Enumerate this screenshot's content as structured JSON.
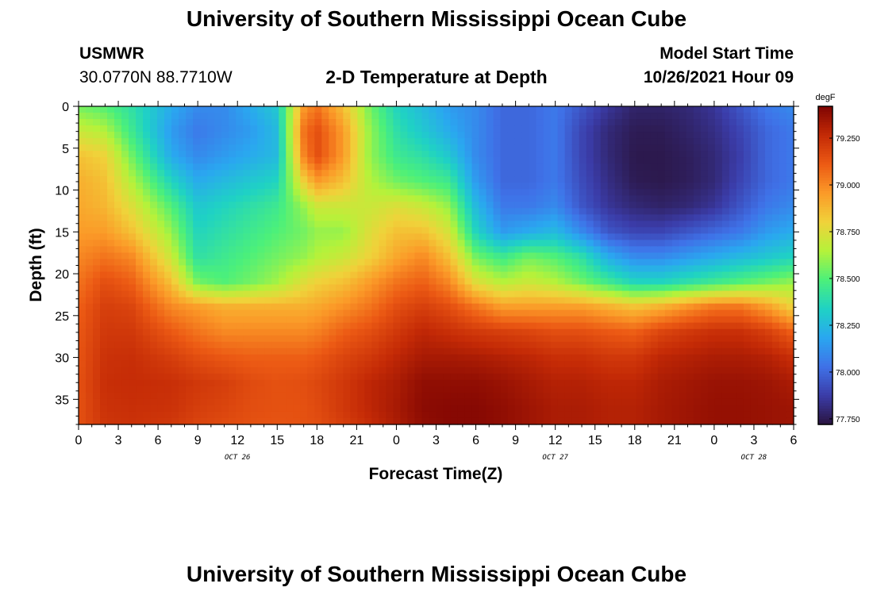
{
  "page": {
    "title": "University of Southern Mississippi Ocean Cube",
    "footer_title": "University of Southern Mississippi Ocean Cube",
    "station": "USMWR",
    "coords": "30.0770N  88.7710W",
    "model_start_label": "Model Start Time",
    "model_start_value": "10/26/2021 Hour 09"
  },
  "chart_data": {
    "type": "heatmap",
    "title": "2-D Temperature at Depth",
    "xlabel": "Forecast Time(Z)",
    "ylabel": "Depth (ft)",
    "x_tick_labels": [
      "0",
      "3",
      "6",
      "9",
      "12",
      "15",
      "18",
      "21",
      "0",
      "3",
      "6",
      "9",
      "12",
      "15",
      "18",
      "21",
      "0",
      "3",
      "6"
    ],
    "date_labels": [
      {
        "text": "OCT 26",
        "x_hours": 12
      },
      {
        "text": "OCT 27",
        "x_hours": 36
      },
      {
        "text": "OCT 28",
        "x_hours": 51
      }
    ],
    "xlim_hours": [
      0,
      54
    ],
    "y_ticks": [
      0,
      5,
      10,
      15,
      20,
      25,
      30,
      35
    ],
    "ylim_ft": [
      0,
      38
    ],
    "colorbar": {
      "unit": "degF",
      "ticks": [
        "79.250",
        "79.000",
        "78.750",
        "78.500",
        "78.250",
        "78.000",
        "77.750"
      ],
      "tick_values": [
        79.25,
        79.0,
        78.75,
        78.5,
        78.25,
        78.0,
        77.75
      ],
      "range": [
        77.72,
        79.42
      ],
      "colors": [
        "#2a1440",
        "#3b3ca8",
        "#3f72e8",
        "#2aa7f0",
        "#1fd2c4",
        "#4cf07a",
        "#b5f23a",
        "#f0d23a",
        "#fb9a28",
        "#ec5a14",
        "#c42a06",
        "#7e0402"
      ]
    },
    "profiles": {
      "depths_ft": [
        0,
        3,
        6,
        9,
        12,
        15,
        18,
        21,
        24,
        27,
        30,
        33,
        36,
        38
      ],
      "columns": [
        {
          "hour": 0,
          "temps": [
            78.55,
            78.7,
            78.85,
            78.9,
            78.92,
            78.95,
            79.0,
            79.05,
            79.1,
            79.12,
            79.13,
            79.14,
            79.14,
            79.14
          ]
        },
        {
          "hour": 2,
          "temps": [
            78.5,
            78.65,
            78.8,
            78.85,
            78.88,
            78.95,
            79.05,
            79.15,
            79.2,
            79.22,
            79.24,
            79.25,
            79.24,
            79.23
          ]
        },
        {
          "hour": 4,
          "temps": [
            78.4,
            78.45,
            78.55,
            78.65,
            78.75,
            78.85,
            79.0,
            79.1,
            79.18,
            79.22,
            79.25,
            79.26,
            79.25,
            79.24
          ]
        },
        {
          "hour": 7,
          "temps": [
            78.2,
            78.15,
            78.2,
            78.35,
            78.5,
            78.6,
            78.7,
            78.85,
            79.0,
            79.12,
            79.2,
            79.25,
            79.24,
            79.22
          ]
        },
        {
          "hour": 9,
          "temps": [
            78.1,
            78.05,
            78.1,
            78.2,
            78.3,
            78.35,
            78.4,
            78.55,
            78.95,
            79.05,
            79.15,
            79.22,
            79.2,
            79.18
          ]
        },
        {
          "hour": 11,
          "temps": [
            78.1,
            78.1,
            78.15,
            78.25,
            78.35,
            78.4,
            78.45,
            78.5,
            78.9,
            79.0,
            79.12,
            79.2,
            79.18,
            79.16
          ]
        },
        {
          "hour": 13,
          "temps": [
            78.2,
            78.15,
            78.2,
            78.3,
            78.4,
            78.45,
            78.5,
            78.55,
            78.9,
            79.0,
            79.1,
            79.16,
            79.15,
            79.14
          ]
        },
        {
          "hour": 15,
          "temps": [
            78.3,
            78.25,
            78.25,
            78.35,
            78.45,
            78.5,
            78.55,
            78.62,
            78.9,
            79.0,
            79.1,
            79.14,
            79.14,
            79.13
          ]
        },
        {
          "hour": 17,
          "temps": [
            78.95,
            79.05,
            79.0,
            78.8,
            78.6,
            78.55,
            78.6,
            78.75,
            78.9,
            79.0,
            79.1,
            79.15,
            79.14,
            79.14
          ]
        },
        {
          "hour": 18,
          "temps": [
            79.05,
            79.15,
            79.15,
            78.95,
            78.7,
            78.6,
            78.65,
            78.8,
            78.92,
            79.02,
            79.12,
            79.17,
            79.16,
            79.15
          ]
        },
        {
          "hour": 20,
          "temps": [
            78.85,
            78.95,
            78.95,
            78.85,
            78.7,
            78.6,
            78.7,
            78.85,
            78.98,
            79.1,
            79.18,
            79.22,
            79.22,
            79.2
          ]
        },
        {
          "hour": 22,
          "temps": [
            78.55,
            78.6,
            78.6,
            78.65,
            78.7,
            78.75,
            78.8,
            78.95,
            79.05,
            79.15,
            79.22,
            79.28,
            79.28,
            79.26
          ]
        },
        {
          "hour": 24,
          "temps": [
            78.35,
            78.4,
            78.45,
            78.55,
            78.75,
            78.85,
            78.92,
            79.05,
            79.15,
            79.22,
            79.28,
            79.32,
            79.33,
            79.32
          ]
        },
        {
          "hour": 26,
          "temps": [
            78.25,
            78.3,
            78.4,
            78.5,
            78.7,
            78.85,
            79.0,
            79.1,
            79.2,
            79.28,
            79.33,
            79.38,
            79.39,
            79.38
          ]
        },
        {
          "hour": 28,
          "temps": [
            78.15,
            78.2,
            78.3,
            78.45,
            78.6,
            78.72,
            78.85,
            79.0,
            79.15,
            79.25,
            79.33,
            79.38,
            79.4,
            79.4
          ]
        },
        {
          "hour": 30,
          "temps": [
            78.1,
            78.1,
            78.1,
            78.15,
            78.25,
            78.35,
            78.55,
            78.75,
            79.05,
            79.22,
            79.32,
            79.38,
            79.4,
            79.4
          ]
        },
        {
          "hour": 32,
          "temps": [
            78.0,
            78.0,
            78.0,
            78.0,
            78.05,
            78.15,
            78.45,
            78.65,
            78.95,
            79.2,
            79.3,
            79.36,
            79.38,
            79.38
          ]
        },
        {
          "hour": 34,
          "temps": [
            78.0,
            78.0,
            78.0,
            78.0,
            78.05,
            78.2,
            78.55,
            78.7,
            78.95,
            79.18,
            79.28,
            79.33,
            79.35,
            79.35
          ]
        },
        {
          "hour": 36,
          "temps": [
            78.05,
            78.05,
            78.05,
            78.05,
            78.1,
            78.25,
            78.5,
            78.65,
            78.95,
            79.15,
            79.25,
            79.3,
            79.32,
            79.32
          ]
        },
        {
          "hour": 38,
          "temps": [
            77.95,
            77.9,
            77.9,
            77.92,
            77.95,
            78.1,
            78.4,
            78.55,
            78.95,
            79.15,
            79.25,
            79.3,
            79.32,
            79.32
          ]
        },
        {
          "hour": 40,
          "temps": [
            77.85,
            77.8,
            77.8,
            77.82,
            77.85,
            77.95,
            78.2,
            78.45,
            78.9,
            79.12,
            79.22,
            79.28,
            79.3,
            79.3
          ]
        },
        {
          "hour": 42,
          "temps": [
            77.78,
            77.75,
            77.74,
            77.75,
            77.8,
            77.9,
            78.1,
            78.35,
            78.85,
            79.1,
            79.22,
            79.28,
            79.3,
            79.3
          ]
        },
        {
          "hour": 44,
          "temps": [
            77.78,
            77.75,
            77.74,
            77.74,
            77.78,
            77.9,
            78.1,
            78.35,
            78.9,
            79.18,
            79.28,
            79.32,
            79.33,
            79.33
          ]
        },
        {
          "hour": 46,
          "temps": [
            77.8,
            77.78,
            77.76,
            77.76,
            77.8,
            77.95,
            78.15,
            78.4,
            78.98,
            79.22,
            79.3,
            79.34,
            79.35,
            79.35
          ]
        },
        {
          "hour": 48,
          "temps": [
            77.85,
            77.82,
            77.8,
            77.8,
            77.85,
            78.0,
            78.2,
            78.45,
            79.05,
            79.25,
            79.32,
            79.36,
            79.37,
            79.37
          ]
        },
        {
          "hour": 50,
          "temps": [
            77.95,
            77.9,
            77.88,
            77.9,
            77.95,
            78.05,
            78.25,
            78.5,
            79.05,
            79.25,
            79.32,
            79.36,
            79.37,
            79.37
          ]
        },
        {
          "hour": 52,
          "temps": [
            78.05,
            78.0,
            78.0,
            78.0,
            78.05,
            78.15,
            78.3,
            78.55,
            78.95,
            79.2,
            79.3,
            79.35,
            79.36,
            79.36
          ]
        },
        {
          "hour": 54,
          "temps": [
            78.1,
            78.05,
            78.05,
            78.05,
            78.1,
            78.2,
            78.35,
            78.6,
            78.8,
            79.1,
            79.25,
            79.32,
            79.35,
            79.35
          ]
        }
      ]
    }
  }
}
